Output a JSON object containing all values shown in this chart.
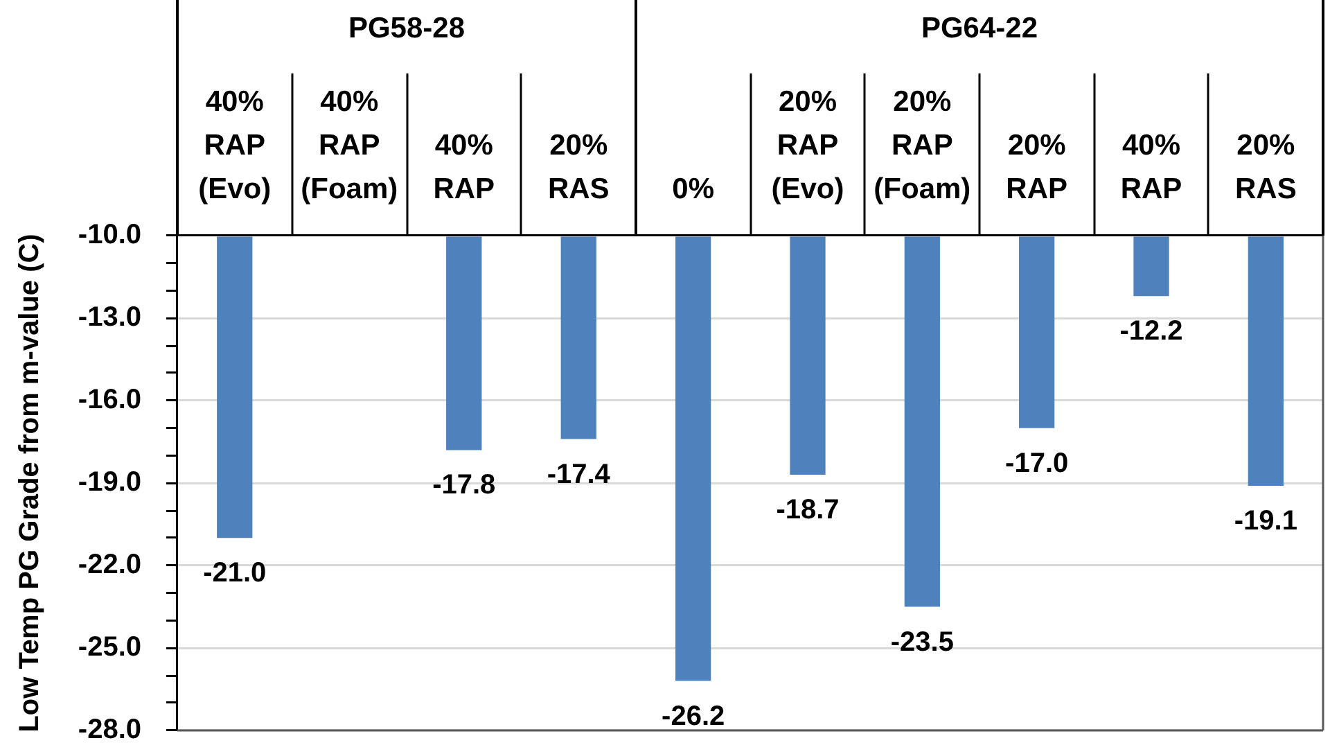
{
  "chart_data": [
    {
      "type": "bar",
      "title": "PG58-28",
      "ylabel": "Low Temp PG Grade from m-value (C)",
      "categories": [
        "40% RAP (Evo)",
        "40% RAP (Foam)",
        "40% RAP",
        "20% RAS"
      ],
      "values": [
        -21.0,
        null,
        -17.8,
        -17.4
      ],
      "value_labels": [
        "-21.0",
        null,
        "-17.8",
        "-17.4"
      ],
      "color": "#4f81bd",
      "ylim": [
        -28,
        -10
      ],
      "yticks": [
        {
          "value": -10,
          "label": "-10.0"
        },
        {
          "value": -11,
          "label": null
        },
        {
          "value": -12,
          "label": null
        },
        {
          "value": -13,
          "label": "-13.0"
        },
        {
          "value": -14,
          "label": null
        },
        {
          "value": -15,
          "label": null
        },
        {
          "value": -16,
          "label": "-16.0"
        },
        {
          "value": -17,
          "label": null
        },
        {
          "value": -18,
          "label": null
        },
        {
          "value": -19,
          "label": "-19.0"
        },
        {
          "value": -20,
          "label": null
        },
        {
          "value": -21,
          "label": null
        },
        {
          "value": -22,
          "label": "-22.0"
        },
        {
          "value": -23,
          "label": null
        },
        {
          "value": -24,
          "label": null
        },
        {
          "value": -25,
          "label": "-25.0"
        },
        {
          "value": -26,
          "label": null
        },
        {
          "value": -27,
          "label": null
        },
        {
          "value": -28,
          "label": "-28.0"
        }
      ],
      "grid": "y",
      "legend": false
    },
    {
      "type": "bar",
      "title": "PG64-22",
      "categories": [
        "0%",
        "20% RAP (Evo)",
        "20% RAP (Foam)",
        "20% RAP",
        "40% RAP",
        "20% RAS"
      ],
      "values": [
        -26.2,
        -18.7,
        -23.5,
        -17.0,
        -12.2,
        -19.1
      ],
      "value_labels": [
        "-26.2",
        "-18.7",
        "-23.5",
        "-17.0",
        "-12.2",
        "-19.1"
      ],
      "color": "#4f81bd",
      "ylim": [
        -28,
        -10
      ],
      "yticks": [
        -10,
        -13,
        -16,
        -19,
        -22,
        -25,
        -28
      ],
      "grid": "y",
      "legend": false,
      "tick_labels": "x"
    }
  ]
}
